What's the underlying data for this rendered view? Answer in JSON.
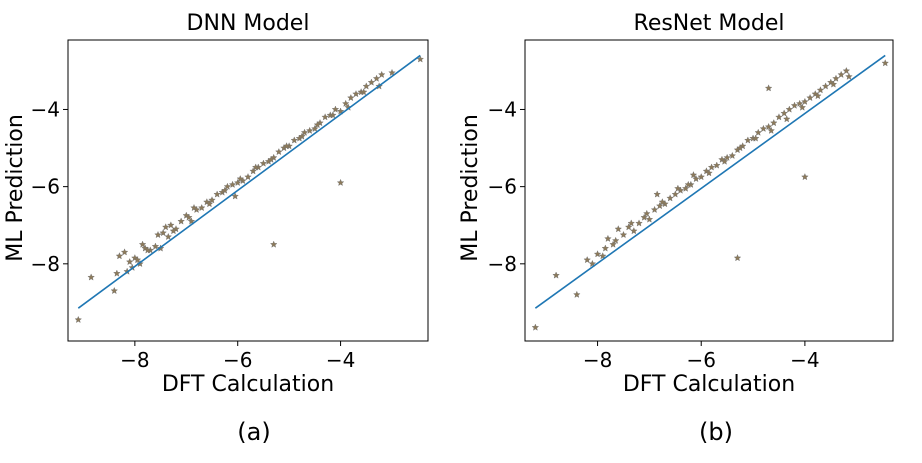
{
  "captions": [
    "(a)",
    "(b)"
  ],
  "chart_data": [
    {
      "type": "scatter",
      "title": "DNN Model",
      "xlabel": "DFT Calculation",
      "ylabel": "ML Prediction",
      "xlim": [
        -9.3,
        -2.3
      ],
      "ylim": [
        -10.0,
        -2.2
      ],
      "xticks": [
        -8,
        -6,
        -4
      ],
      "yticks": [
        -8,
        -6,
        -4
      ],
      "xtick_labels": [
        "−8",
        "−6",
        "−4"
      ],
      "ytick_labels": [
        "−8",
        "−6",
        "−4"
      ],
      "grid": false,
      "marker": "star",
      "marker_color": "#8c7a5b",
      "line_color": "#1f77b4",
      "fit_line": {
        "x": [
          -9.1,
          -2.45
        ],
        "y": [
          -9.15,
          -2.6
        ]
      },
      "x": [
        -9.1,
        -8.85,
        -8.4,
        -8.35,
        -8.3,
        -8.2,
        -8.1,
        -8.05,
        -8.0,
        -7.95,
        -7.9,
        -7.85,
        -7.8,
        -7.7,
        -7.6,
        -7.55,
        -7.5,
        -7.45,
        -7.4,
        -7.35,
        -7.3,
        -7.2,
        -7.1,
        -7.0,
        -6.9,
        -6.8,
        -6.7,
        -6.6,
        -6.5,
        -6.4,
        -6.3,
        -6.2,
        -6.1,
        -6.0,
        -5.9,
        -5.8,
        -5.7,
        -5.6,
        -5.5,
        -5.4,
        -5.3,
        -5.2,
        -5.1,
        -5.0,
        -4.9,
        -4.8,
        -4.7,
        -4.6,
        -4.5,
        -4.4,
        -4.3,
        -4.2,
        -4.1,
        -4.0,
        -3.9,
        -3.8,
        -3.7,
        -3.6,
        -3.5,
        -3.4,
        -3.3,
        -3.2,
        -2.45,
        -5.3,
        -4.0,
        -8.15,
        -7.75,
        -7.25,
        -6.95,
        -6.55,
        -6.25,
        -5.95,
        -5.65,
        -5.35,
        -5.05,
        -4.75,
        -4.45,
        -4.15,
        -3.85,
        -3.55,
        -3.25,
        -3.0,
        -6.85,
        -6.05
      ],
      "y": [
        -9.45,
        -8.35,
        -8.7,
        -8.25,
        -7.8,
        -7.7,
        -7.95,
        -8.1,
        -7.85,
        -7.9,
        -8.0,
        -7.5,
        -7.6,
        -7.65,
        -7.55,
        -7.25,
        -7.6,
        -7.2,
        -7.05,
        -7.3,
        -7.0,
        -7.1,
        -6.9,
        -6.75,
        -6.9,
        -6.6,
        -6.55,
        -6.4,
        -6.35,
        -6.2,
        -6.15,
        -6.0,
        -5.95,
        -5.9,
        -5.85,
        -5.75,
        -5.6,
        -5.5,
        -5.4,
        -5.35,
        -5.25,
        -5.1,
        -5.0,
        -4.95,
        -4.8,
        -4.75,
        -4.6,
        -4.55,
        -4.5,
        -4.35,
        -4.2,
        -4.15,
        -4.0,
        -4.05,
        -3.85,
        -3.7,
        -3.6,
        -3.55,
        -3.4,
        -3.3,
        -3.2,
        -3.1,
        -2.7,
        -7.5,
        -5.9,
        -8.2,
        -7.65,
        -7.15,
        -6.8,
        -6.45,
        -6.1,
        -5.8,
        -5.5,
        -5.3,
        -4.95,
        -4.7,
        -4.4,
        -4.15,
        -3.95,
        -3.55,
        -3.4,
        -3.05,
        -6.55,
        -6.25
      ]
    },
    {
      "type": "scatter",
      "title": "ResNet Model",
      "xlabel": "DFT Calculation",
      "ylabel": "ML Prediction",
      "xlim": [
        -9.4,
        -2.3
      ],
      "ylim": [
        -10.0,
        -2.2
      ],
      "xticks": [
        -8,
        -6,
        -4
      ],
      "yticks": [
        -8,
        -6,
        -4
      ],
      "xtick_labels": [
        "−8",
        "−6",
        "−4"
      ],
      "ytick_labels": [
        "−8",
        "−6",
        "−4"
      ],
      "grid": false,
      "marker": "star",
      "marker_color": "#8c7a5b",
      "line_color": "#1f77b4",
      "fit_line": {
        "x": [
          -9.2,
          -2.45
        ],
        "y": [
          -9.15,
          -2.6
        ]
      },
      "x": [
        -9.2,
        -8.8,
        -8.4,
        -8.2,
        -8.1,
        -8.0,
        -7.9,
        -7.85,
        -7.8,
        -7.7,
        -7.6,
        -7.5,
        -7.4,
        -7.3,
        -7.2,
        -7.1,
        -7.0,
        -6.9,
        -6.8,
        -6.7,
        -6.6,
        -6.5,
        -6.4,
        -6.3,
        -6.2,
        -6.1,
        -6.0,
        -5.9,
        -5.8,
        -5.7,
        -5.6,
        -5.5,
        -5.4,
        -5.3,
        -5.2,
        -5.1,
        -5.0,
        -4.9,
        -4.8,
        -4.7,
        -4.6,
        -4.5,
        -4.4,
        -4.3,
        -4.2,
        -4.1,
        -4.0,
        -3.9,
        -3.8,
        -3.7,
        -3.6,
        -3.5,
        -3.4,
        -3.3,
        -3.2,
        -2.45,
        -5.3,
        -4.0,
        -4.7,
        -7.65,
        -7.35,
        -7.05,
        -6.75,
        -6.45,
        -6.15,
        -5.85,
        -5.55,
        -5.25,
        -4.95,
        -4.65,
        -4.35,
        -4.05,
        -3.75,
        -3.45,
        -3.15,
        -6.85,
        -6.25
      ],
      "y": [
        -9.65,
        -8.3,
        -8.8,
        -7.9,
        -8.0,
        -7.75,
        -7.8,
        -7.6,
        -7.35,
        -7.5,
        -7.1,
        -7.25,
        -7.05,
        -7.15,
        -6.95,
        -6.8,
        -6.85,
        -6.6,
        -6.5,
        -6.45,
        -6.3,
        -6.2,
        -6.1,
        -6.05,
        -5.95,
        -5.8,
        -5.75,
        -5.6,
        -5.5,
        -5.45,
        -5.3,
        -5.25,
        -5.2,
        -5.05,
        -4.95,
        -4.8,
        -4.75,
        -4.6,
        -4.5,
        -4.45,
        -4.35,
        -4.2,
        -4.1,
        -4.0,
        -3.9,
        -3.85,
        -3.8,
        -3.7,
        -3.6,
        -3.5,
        -3.4,
        -3.3,
        -3.2,
        -3.1,
        -3.0,
        -2.8,
        -7.85,
        -5.75,
        -3.45,
        -7.4,
        -6.95,
        -6.7,
        -6.4,
        -6.05,
        -5.7,
        -5.65,
        -5.35,
        -5.0,
        -4.75,
        -4.55,
        -4.25,
        -3.95,
        -3.65,
        -3.35,
        -3.15,
        -6.2,
        -5.95
      ]
    }
  ]
}
